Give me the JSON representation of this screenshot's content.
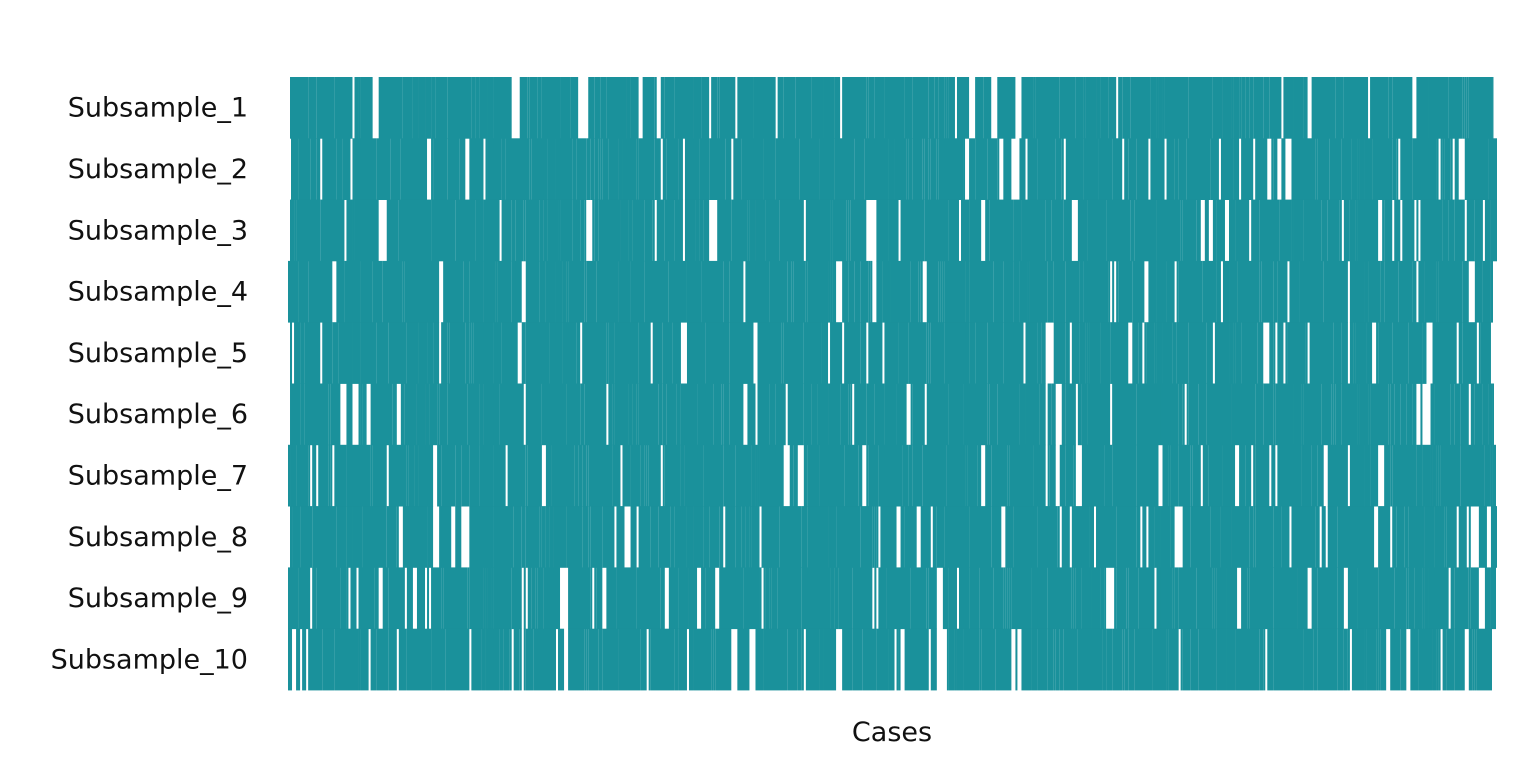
{
  "chart_data": {
    "type": "heatmap",
    "title": "",
    "xlabel": "Cases",
    "ylabel": "",
    "x_tick_labels": [],
    "rows": [
      "Subsample_1",
      "Subsample_2",
      "Subsample_3",
      "Subsample_4",
      "Subsample_5",
      "Subsample_6",
      "Subsample_7",
      "Subsample_8",
      "Subsample_9",
      "Subsample_10"
    ],
    "n_cases": 600,
    "cell_values": [
      0,
      1
    ],
    "included_fraction": 0.8,
    "colors": {
      "included": "#1a919b",
      "excluded": "#ffffff"
    },
    "grid": false,
    "legend": "none"
  }
}
